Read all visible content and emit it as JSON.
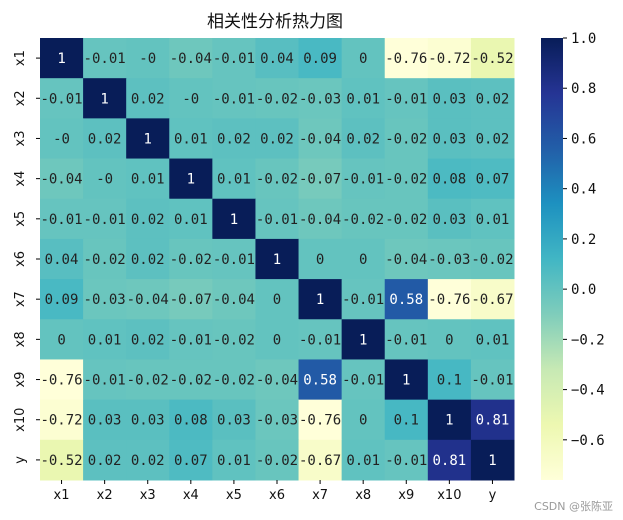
{
  "chart_data": {
    "type": "heatmap",
    "title": "相关性分析热力图",
    "row_labels": [
      "x1",
      "x2",
      "x3",
      "x4",
      "x5",
      "x6",
      "x7",
      "x8",
      "x9",
      "x10",
      "y"
    ],
    "col_labels": [
      "x1",
      "x2",
      "x3",
      "x4",
      "x5",
      "x6",
      "x7",
      "x8",
      "x9",
      "x10",
      "y"
    ],
    "cell_labels": [
      [
        "1",
        "-0.01",
        "-0",
        "-0.04",
        "-0.01",
        "0.04",
        "0.09",
        "0",
        "-0.76",
        "-0.72",
        "-0.52"
      ],
      [
        "-0.01",
        "1",
        "0.02",
        "-0",
        "-0.01",
        "-0.02",
        "-0.03",
        "0.01",
        "-0.01",
        "0.03",
        "0.02"
      ],
      [
        "-0",
        "0.02",
        "1",
        "0.01",
        "0.02",
        "0.02",
        "-0.04",
        "0.02",
        "-0.02",
        "0.03",
        "0.02"
      ],
      [
        "-0.04",
        "-0",
        "0.01",
        "1",
        "0.01",
        "-0.02",
        "-0.07",
        "-0.01",
        "-0.02",
        "0.08",
        "0.07"
      ],
      [
        "-0.01",
        "-0.01",
        "0.02",
        "0.01",
        "1",
        "-0.01",
        "-0.04",
        "-0.02",
        "-0.02",
        "0.03",
        "0.01"
      ],
      [
        "0.04",
        "-0.02",
        "0.02",
        "-0.02",
        "-0.01",
        "1",
        "0",
        "0",
        "-0.04",
        "-0.03",
        "-0.02"
      ],
      [
        "0.09",
        "-0.03",
        "-0.04",
        "-0.07",
        "-0.04",
        "0",
        "1",
        "-0.01",
        "0.58",
        "-0.76",
        "-0.67"
      ],
      [
        "0",
        "0.01",
        "0.02",
        "-0.01",
        "-0.02",
        "0",
        "-0.01",
        "1",
        "-0.01",
        "0",
        "0.01"
      ],
      [
        "-0.76",
        "-0.01",
        "-0.02",
        "-0.02",
        "-0.02",
        "-0.04",
        "0.58",
        "-0.01",
        "1",
        "0.1",
        "-0.01"
      ],
      [
        "-0.72",
        "0.03",
        "0.03",
        "0.08",
        "0.03",
        "-0.03",
        "-0.76",
        "0",
        "0.1",
        "1",
        "0.81"
      ],
      [
        "-0.52",
        "0.02",
        "0.02",
        "0.07",
        "0.01",
        "-0.02",
        "-0.67",
        "0.01",
        "-0.01",
        "0.81",
        "1"
      ]
    ],
    "colorbar": {
      "colormap": "YlGnBu",
      "vmin": -0.76,
      "vmax": 1.0,
      "ticks": [
        1.0,
        0.8,
        0.6,
        0.4,
        0.2,
        0.0,
        -0.2,
        -0.4,
        -0.6
      ],
      "tick_labels": [
        "1.0",
        "0.8",
        "0.6",
        "0.4",
        "0.2",
        "0.0",
        "−0.2",
        "−0.4",
        "−0.6"
      ]
    },
    "colors": {
      "light_text": "#ffffff",
      "dark_text": "#222222"
    }
  },
  "watermark": "CSDN @张陈亚"
}
